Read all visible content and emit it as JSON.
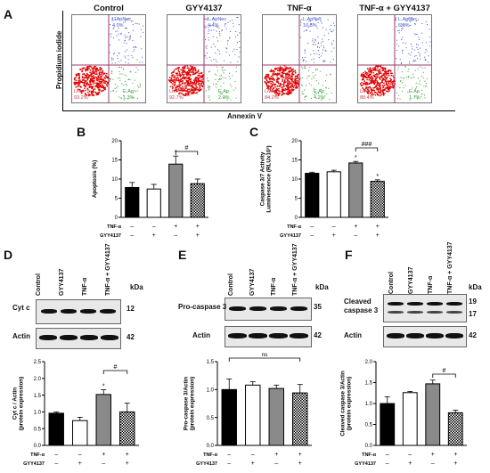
{
  "panels": {
    "A": "A",
    "B": "B",
    "C": "C",
    "D": "D",
    "E": "E",
    "F": "F"
  },
  "flow": {
    "y_axis": "Propidium iodide",
    "x_axis": "Annexin V",
    "plots": [
      {
        "title": "Control",
        "nec": "L.ApNec",
        "nec_val": "4.0%",
        "live": "Live",
        "live_val": "93.2%",
        "eap": "E.Ap",
        "eap_val": "1.3%"
      },
      {
        "title": "GYY4137",
        "nec": "L.ApNec",
        "nec_val": "4.4%",
        "live": "Live",
        "live_val": "92.7%",
        "eap": "E.Ap",
        "eap_val": "2.0%"
      },
      {
        "title": "TNF-α",
        "nec": "L.ApNec",
        "nec_val": "10.5%",
        "live": "Live",
        "live_val": "84.2%",
        "eap": "E.Ap",
        "eap_val": "4.2%"
      },
      {
        "title": "TNF-α + GYY4137",
        "nec": "L.ApNec",
        "nec_val": "6.9%",
        "live": "Live",
        "live_val": "88.4%",
        "eap": "E.Ap",
        "eap_val": "1.7%"
      }
    ]
  },
  "treatment_rows": {
    "row1": "TNF-α",
    "row2": "GYY4137"
  },
  "signs": {
    "minus": "–",
    "plus": "+"
  },
  "lanes": [
    "Control",
    "GYY4137",
    "TNF-α",
    "TNF-α + GYY4137"
  ],
  "blots": {
    "kda": "kDa",
    "D": {
      "target": "Cyt c",
      "target_kda": "12",
      "actin": "Actin",
      "actin_kda": "42"
    },
    "E": {
      "target": "Pro-caspase 3",
      "target_kda": "35",
      "actin": "Actin",
      "actin_kda": "42"
    },
    "F": {
      "target": "Cleaved caspase 3",
      "target_kda_hi": "19",
      "target_kda_lo": "17",
      "actin": "Actin",
      "actin_kda": "42"
    }
  },
  "chart_data": [
    {
      "id": "B",
      "type": "bar",
      "categories": [
        "Control",
        "GYY4137",
        "TNF-α",
        "TNF-α + GYY4137"
      ],
      "values": [
        7.8,
        7.4,
        13.9,
        8.8
      ],
      "errors": [
        1.3,
        1.2,
        2.1,
        1.2
      ],
      "ylabel": "Apoptosis (%)",
      "ylim": [
        0,
        20
      ],
      "yticks": [
        0,
        5,
        10,
        15,
        20
      ],
      "annotations": {
        "star": "*",
        "hash": "#"
      },
      "tick_labels": [
        "0",
        "5",
        "10",
        "15",
        "20"
      ]
    },
    {
      "id": "C",
      "type": "bar",
      "categories": [
        "Control",
        "GYY4137",
        "TNF-α",
        "TNF-α + GYY4137"
      ],
      "values": [
        11.5,
        11.9,
        14.2,
        9.4
      ],
      "errors": [
        0.3,
        0.4,
        0.4,
        0.4
      ],
      "ylabel": "Caspase 3/7 Activity Luminescence (RLUx10³)",
      "ylim": [
        0,
        20
      ],
      "yticks": [
        0,
        5,
        10,
        15,
        20
      ],
      "annotations": {
        "star": "*",
        "hash": "###"
      },
      "tick_labels": [
        "0",
        "5",
        "10",
        "15",
        "20"
      ]
    },
    {
      "id": "D",
      "type": "bar",
      "categories": [
        "Control",
        "GYY4137",
        "TNF-α",
        "TNF-α + GYY4137"
      ],
      "values": [
        0.96,
        0.74,
        1.52,
        1.0
      ],
      "errors": [
        0.04,
        0.1,
        0.14,
        0.26
      ],
      "ylabel": "Cyt c / Actin (protein expression)",
      "ylim": [
        0,
        2.5
      ],
      "yticks": [
        0,
        0.5,
        1,
        1.5,
        2,
        2.5
      ],
      "annotations": {
        "star": "*",
        "hash": "#"
      },
      "tick_labels": [
        "0.0",
        "0.5",
        "1.0",
        "1.5",
        "2.0",
        "2.5"
      ]
    },
    {
      "id": "E",
      "type": "bar",
      "categories": [
        "Control",
        "GYY4137",
        "TNF-α",
        "TNF-α + GYY4137"
      ],
      "values": [
        1.0,
        1.08,
        1.02,
        0.94
      ],
      "errors": [
        0.19,
        0.06,
        0.06,
        0.15
      ],
      "ylabel": "Pro-caspase 3/Actin (protein expression)",
      "ylim": [
        0,
        1.5
      ],
      "yticks": [
        0,
        0.5,
        1,
        1.5
      ],
      "annotations": {
        "ns": "ns"
      },
      "tick_labels": [
        "0.0",
        "0.5",
        "1.0",
        "1.5"
      ]
    },
    {
      "id": "F",
      "type": "bar",
      "categories": [
        "Control",
        "GYY4137",
        "TNF-α",
        "TNF-α + GYY4137"
      ],
      "values": [
        1.0,
        1.26,
        1.47,
        0.78
      ],
      "errors": [
        0.16,
        0.03,
        0.09,
        0.06
      ],
      "ylabel": "Cleaved caspase 3/Actin (protein expression)",
      "ylim": [
        0,
        2.0
      ],
      "yticks": [
        0,
        0.5,
        1,
        1.5,
        2
      ],
      "annotations": {
        "hash": "#"
      },
      "tick_labels": [
        "0.0",
        "0.5",
        "1.0",
        "1.5",
        "2.0"
      ]
    }
  ]
}
